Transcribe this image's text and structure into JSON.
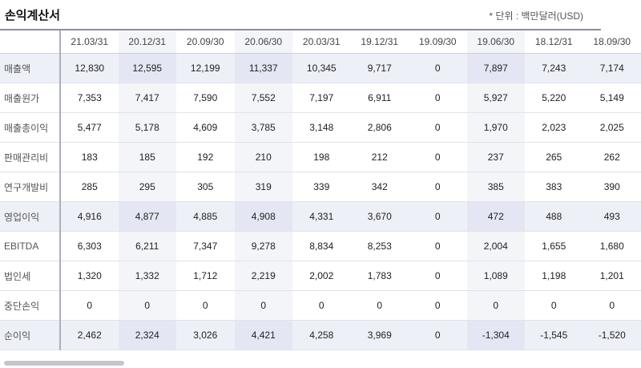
{
  "header": {
    "title": "손익계산서",
    "unit": "* 단위 : 백만달러(USD)"
  },
  "table": {
    "columns": [
      "21.03/31",
      "20.12/31",
      "20.09/30",
      "20.06/30",
      "20.03/31",
      "19.12/31",
      "19.09/30",
      "19.06/30",
      "18.12/31",
      "18.09/30"
    ],
    "rows": [
      {
        "label": "매출액",
        "highlight": true,
        "values": [
          "12,830",
          "12,595",
          "12,199",
          "11,337",
          "10,345",
          "9,717",
          "0",
          "7,897",
          "7,243",
          "7,174"
        ]
      },
      {
        "label": "매출원가",
        "highlight": false,
        "values": [
          "7,353",
          "7,417",
          "7,590",
          "7,552",
          "7,197",
          "6,911",
          "0",
          "5,927",
          "5,220",
          "5,149"
        ]
      },
      {
        "label": "매출총이익",
        "highlight": false,
        "values": [
          "5,477",
          "5,178",
          "4,609",
          "3,785",
          "3,148",
          "2,806",
          "0",
          "1,970",
          "2,023",
          "2,025"
        ]
      },
      {
        "label": "판매관리비",
        "highlight": false,
        "values": [
          "183",
          "185",
          "192",
          "210",
          "198",
          "212",
          "0",
          "237",
          "265",
          "262"
        ]
      },
      {
        "label": "연구개발비",
        "highlight": false,
        "values": [
          "285",
          "295",
          "305",
          "319",
          "339",
          "342",
          "0",
          "385",
          "383",
          "390"
        ]
      },
      {
        "label": "영업이익",
        "highlight": true,
        "values": [
          "4,916",
          "4,877",
          "4,885",
          "4,908",
          "4,331",
          "3,670",
          "0",
          "472",
          "488",
          "493"
        ]
      },
      {
        "label": "EBITDA",
        "highlight": false,
        "values": [
          "6,303",
          "6,211",
          "7,347",
          "9,278",
          "8,834",
          "8,253",
          "0",
          "2,004",
          "1,655",
          "1,680"
        ]
      },
      {
        "label": "법인세",
        "highlight": false,
        "values": [
          "1,320",
          "1,332",
          "1,712",
          "2,219",
          "2,002",
          "1,783",
          "0",
          "1,089",
          "1,198",
          "1,201"
        ]
      },
      {
        "label": "중단손익",
        "highlight": false,
        "values": [
          "0",
          "0",
          "0",
          "0",
          "0",
          "0",
          "0",
          "0",
          "0",
          "0"
        ]
      },
      {
        "label": "순이익",
        "highlight": true,
        "values": [
          "2,462",
          "2,324",
          "3,026",
          "4,421",
          "4,258",
          "3,969",
          "0",
          "-1,304",
          "-1,545",
          "-1,520"
        ]
      }
    ]
  }
}
